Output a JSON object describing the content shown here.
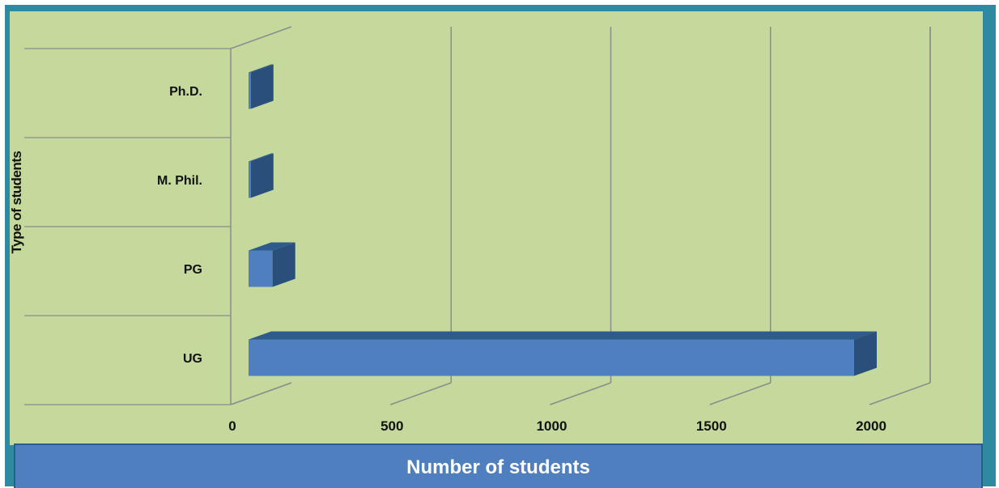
{
  "chart_data": {
    "type": "bar",
    "orientation": "horizontal",
    "style": "3d",
    "categories": [
      "Ph.D.",
      "M. Phil.",
      "PG",
      "UG"
    ],
    "values": [
      7,
      7,
      75,
      1890
    ],
    "xlabel": "Number of students",
    "ylabel": "Type of students",
    "xlim": [
      0,
      2000
    ],
    "xticks": [
      "0",
      "500",
      "1000",
      "1500",
      "2000"
    ],
    "grid": true,
    "legend": "none"
  },
  "colors": {
    "border": "#2f8aa1",
    "plot_background": "#c4d99b",
    "bar_front": "#4f7fbe",
    "bar_top": "#2f5b8c",
    "bar_side": "#2a4f7a",
    "gridline": "#8c8c8c",
    "axis_title_band": "#4f7fbe"
  }
}
